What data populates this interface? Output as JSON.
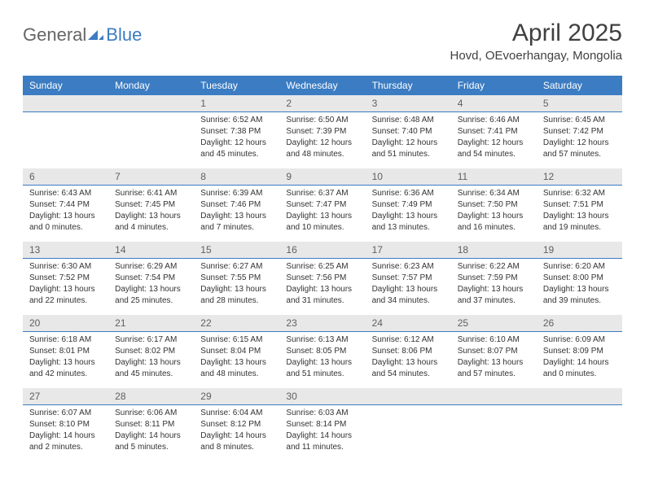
{
  "logo": {
    "text1": "General",
    "text2": "Blue"
  },
  "title": "April 2025",
  "location": "Hovd, OEvoerhangay, Mongolia",
  "colors": {
    "header_bg": "#3b7cc2",
    "header_text": "#ffffff",
    "daynum_bg": "#e8e8e8",
    "text": "#333333",
    "title_color": "#404040"
  },
  "weekdays": [
    "Sunday",
    "Monday",
    "Tuesday",
    "Wednesday",
    "Thursday",
    "Friday",
    "Saturday"
  ],
  "weeks": [
    {
      "nums": [
        "",
        "",
        "1",
        "2",
        "3",
        "4",
        "5"
      ],
      "cells": [
        null,
        null,
        {
          "sunrise": "6:52 AM",
          "sunset": "7:38 PM",
          "daylight": "12 hours and 45 minutes."
        },
        {
          "sunrise": "6:50 AM",
          "sunset": "7:39 PM",
          "daylight": "12 hours and 48 minutes."
        },
        {
          "sunrise": "6:48 AM",
          "sunset": "7:40 PM",
          "daylight": "12 hours and 51 minutes."
        },
        {
          "sunrise": "6:46 AM",
          "sunset": "7:41 PM",
          "daylight": "12 hours and 54 minutes."
        },
        {
          "sunrise": "6:45 AM",
          "sunset": "7:42 PM",
          "daylight": "12 hours and 57 minutes."
        }
      ]
    },
    {
      "nums": [
        "6",
        "7",
        "8",
        "9",
        "10",
        "11",
        "12"
      ],
      "cells": [
        {
          "sunrise": "6:43 AM",
          "sunset": "7:44 PM",
          "daylight": "13 hours and 0 minutes."
        },
        {
          "sunrise": "6:41 AM",
          "sunset": "7:45 PM",
          "daylight": "13 hours and 4 minutes."
        },
        {
          "sunrise": "6:39 AM",
          "sunset": "7:46 PM",
          "daylight": "13 hours and 7 minutes."
        },
        {
          "sunrise": "6:37 AM",
          "sunset": "7:47 PM",
          "daylight": "13 hours and 10 minutes."
        },
        {
          "sunrise": "6:36 AM",
          "sunset": "7:49 PM",
          "daylight": "13 hours and 13 minutes."
        },
        {
          "sunrise": "6:34 AM",
          "sunset": "7:50 PM",
          "daylight": "13 hours and 16 minutes."
        },
        {
          "sunrise": "6:32 AM",
          "sunset": "7:51 PM",
          "daylight": "13 hours and 19 minutes."
        }
      ]
    },
    {
      "nums": [
        "13",
        "14",
        "15",
        "16",
        "17",
        "18",
        "19"
      ],
      "cells": [
        {
          "sunrise": "6:30 AM",
          "sunset": "7:52 PM",
          "daylight": "13 hours and 22 minutes."
        },
        {
          "sunrise": "6:29 AM",
          "sunset": "7:54 PM",
          "daylight": "13 hours and 25 minutes."
        },
        {
          "sunrise": "6:27 AM",
          "sunset": "7:55 PM",
          "daylight": "13 hours and 28 minutes."
        },
        {
          "sunrise": "6:25 AM",
          "sunset": "7:56 PM",
          "daylight": "13 hours and 31 minutes."
        },
        {
          "sunrise": "6:23 AM",
          "sunset": "7:57 PM",
          "daylight": "13 hours and 34 minutes."
        },
        {
          "sunrise": "6:22 AM",
          "sunset": "7:59 PM",
          "daylight": "13 hours and 37 minutes."
        },
        {
          "sunrise": "6:20 AM",
          "sunset": "8:00 PM",
          "daylight": "13 hours and 39 minutes."
        }
      ]
    },
    {
      "nums": [
        "20",
        "21",
        "22",
        "23",
        "24",
        "25",
        "26"
      ],
      "cells": [
        {
          "sunrise": "6:18 AM",
          "sunset": "8:01 PM",
          "daylight": "13 hours and 42 minutes."
        },
        {
          "sunrise": "6:17 AM",
          "sunset": "8:02 PM",
          "daylight": "13 hours and 45 minutes."
        },
        {
          "sunrise": "6:15 AM",
          "sunset": "8:04 PM",
          "daylight": "13 hours and 48 minutes."
        },
        {
          "sunrise": "6:13 AM",
          "sunset": "8:05 PM",
          "daylight": "13 hours and 51 minutes."
        },
        {
          "sunrise": "6:12 AM",
          "sunset": "8:06 PM",
          "daylight": "13 hours and 54 minutes."
        },
        {
          "sunrise": "6:10 AM",
          "sunset": "8:07 PM",
          "daylight": "13 hours and 57 minutes."
        },
        {
          "sunrise": "6:09 AM",
          "sunset": "8:09 PM",
          "daylight": "14 hours and 0 minutes."
        }
      ]
    },
    {
      "nums": [
        "27",
        "28",
        "29",
        "30",
        "",
        "",
        ""
      ],
      "cells": [
        {
          "sunrise": "6:07 AM",
          "sunset": "8:10 PM",
          "daylight": "14 hours and 2 minutes."
        },
        {
          "sunrise": "6:06 AM",
          "sunset": "8:11 PM",
          "daylight": "14 hours and 5 minutes."
        },
        {
          "sunrise": "6:04 AM",
          "sunset": "8:12 PM",
          "daylight": "14 hours and 8 minutes."
        },
        {
          "sunrise": "6:03 AM",
          "sunset": "8:14 PM",
          "daylight": "14 hours and 11 minutes."
        },
        null,
        null,
        null
      ]
    }
  ]
}
